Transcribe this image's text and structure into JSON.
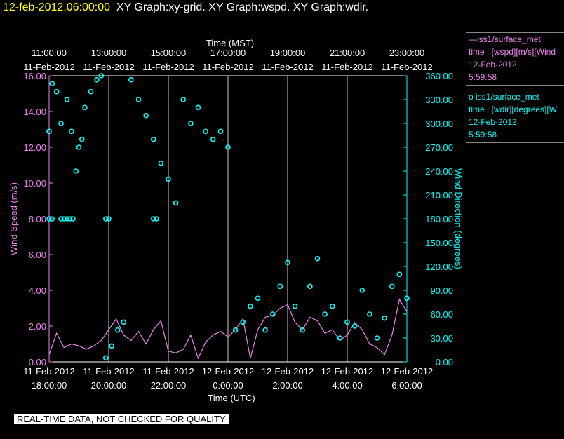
{
  "header": {
    "timestamp": "12-feb-2012,06:00:00",
    "graphs": "XY Graph:xy-grid.  XY Graph:wspd.  XY Graph:wdir."
  },
  "legend": {
    "wspd": {
      "line1": "—iss1/surface_met",
      "line2": "time : [wspd][m/s][Wind",
      "line3": "12-Feb-2012",
      "line4": "5:59:58"
    },
    "wdir": {
      "line1": "o  iss1/surface_met",
      "line2": "time : [wdir][degrees][W",
      "line3": "12-Feb-2012",
      "line4": "5:59:58"
    }
  },
  "footer": "REAL-TIME DATA, NOT CHECKED FOR QUALITY",
  "colors": {
    "wspd": "#ee82ee",
    "wdir": "#00ffff",
    "grid": "#ffffff",
    "background": "#000000"
  },
  "chart_data": {
    "type": "line",
    "top_axis_title": "Time (MST)",
    "top_ticks": [
      {
        "time": "11:00:00",
        "date": "11-Feb-2012"
      },
      {
        "time": "13:00:00",
        "date": "11-Feb-2012"
      },
      {
        "time": "15:00:00",
        "date": "11-Feb-2012"
      },
      {
        "time": "17:00:00",
        "date": "11-Feb-2012"
      },
      {
        "time": "19:00:00",
        "date": "11-Feb-2012"
      },
      {
        "time": "21:00:00",
        "date": "11-Feb-2012"
      },
      {
        "time": "23:00:00",
        "date": "11-Feb-2012"
      }
    ],
    "xlabel": "Time (UTC)",
    "bottom_ticks": [
      {
        "date": "11-Feb-2012",
        "time": "18:00:00"
      },
      {
        "date": "11-Feb-2012",
        "time": "20:00:00"
      },
      {
        "date": "11-Feb-2012",
        "time": "22:00:00"
      },
      {
        "date": "12-Feb-2012",
        "time": "0:00:00"
      },
      {
        "date": "12-Feb-2012",
        "time": "2:00:00"
      },
      {
        "date": "12-Feb-2012",
        "time": "4:00:00"
      },
      {
        "date": "12-Feb-2012",
        "time": "6:00:00"
      }
    ],
    "xlim": [
      18,
      30
    ],
    "ylabel_left": "Wind Speed (m/s)",
    "ylim_left": [
      0,
      16
    ],
    "yticks_left": [
      "0.00",
      "2.00",
      "4.00",
      "6.00",
      "8.00",
      "10.00",
      "12.00",
      "14.00",
      "16.00"
    ],
    "ylabel_right": "Wind Direction (degrees)",
    "ylim_right": [
      0,
      360
    ],
    "yticks_right": [
      "0.00",
      "30.00",
      "60.00",
      "90.00",
      "120.00",
      "150.00",
      "180.00",
      "210.00",
      "240.00",
      "270.00",
      "300.00",
      "330.00",
      "360.00"
    ],
    "grid": "vertical",
    "series": [
      {
        "name": "iss1/surface_met wspd",
        "axis": "left",
        "style": "line",
        "x": [
          18.0,
          18.25,
          18.5,
          18.75,
          19.0,
          19.25,
          19.5,
          19.75,
          20.0,
          20.25,
          20.5,
          20.75,
          21.0,
          21.25,
          21.5,
          21.75,
          22.0,
          22.25,
          22.5,
          22.75,
          23.0,
          23.25,
          23.5,
          23.75,
          24.0,
          24.25,
          24.5,
          24.75,
          25.0,
          25.25,
          25.5,
          25.75,
          26.0,
          26.25,
          26.5,
          26.75,
          27.0,
          27.25,
          27.5,
          27.75,
          28.0,
          28.25,
          28.5,
          28.75,
          29.0,
          29.25,
          29.5,
          29.75,
          30.0
        ],
        "y": [
          0.4,
          1.6,
          0.8,
          1.0,
          0.9,
          0.7,
          0.9,
          1.2,
          1.8,
          2.4,
          1.5,
          1.2,
          1.7,
          1.0,
          1.8,
          2.3,
          0.6,
          0.5,
          0.7,
          1.5,
          0.2,
          1.1,
          1.5,
          1.7,
          1.4,
          1.8,
          2.4,
          0.2,
          1.8,
          2.5,
          2.6,
          3.0,
          3.2,
          2.2,
          1.8,
          2.5,
          2.3,
          1.6,
          1.8,
          1.2,
          1.5,
          2.2,
          1.8,
          1.0,
          0.8,
          0.4,
          1.5,
          3.5,
          2.8
        ]
      },
      {
        "name": "iss1/surface_met wdir",
        "axis": "right",
        "style": "circles",
        "x": [
          18.0,
          18.1,
          18.25,
          18.4,
          18.6,
          18.75,
          18.9,
          19.0,
          19.1,
          19.2,
          19.4,
          19.6,
          19.75,
          19.9,
          20.1,
          20.3,
          20.5,
          20.75,
          21.0,
          21.25,
          21.5,
          21.75,
          22.0,
          22.25,
          22.5,
          22.75,
          23.0,
          23.25,
          23.5,
          23.75,
          24.0,
          24.25,
          24.5,
          24.75,
          25.0,
          25.25,
          25.5,
          25.75,
          26.0,
          26.25,
          26.5,
          26.75,
          27.0,
          27.25,
          27.5,
          27.75,
          28.0,
          28.25,
          28.5,
          28.75,
          29.0,
          29.25,
          29.5,
          29.75,
          30.0
        ],
        "y": [
          290,
          350,
          340,
          300,
          330,
          290,
          240,
          270,
          280,
          320,
          340,
          355,
          360,
          5,
          20,
          40,
          50,
          355,
          330,
          310,
          280,
          250,
          230,
          200,
          330,
          300,
          320,
          290,
          280,
          290,
          270,
          40,
          50,
          70,
          80,
          40,
          60,
          95,
          125,
          70,
          40,
          95,
          130,
          60,
          70,
          30,
          50,
          45,
          90,
          60,
          30,
          55,
          95,
          110,
          80
        ]
      },
      {
        "name": "iss1/surface_met wdir (flag)",
        "axis": "right",
        "style": "circles",
        "x": [
          18.0,
          18.1,
          18.4,
          18.5,
          18.6,
          18.7,
          18.8,
          19.9,
          20.0,
          21.5,
          21.6
        ],
        "y": [
          180,
          180,
          180,
          180,
          180,
          180,
          180,
          180,
          180,
          180,
          180
        ]
      }
    ]
  }
}
